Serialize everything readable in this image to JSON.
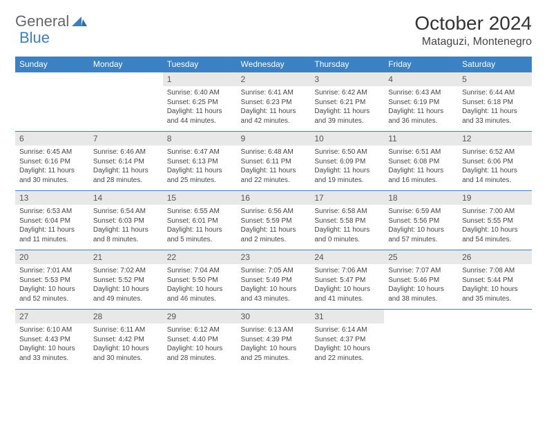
{
  "logo": {
    "text1": "General",
    "text2": "Blue"
  },
  "title": {
    "month": "October 2024",
    "location": "Mataguzi, Montenegro"
  },
  "colors": {
    "header_bg": "#3b82c4",
    "header_fg": "#ffffff",
    "daynum_bg": "#e8e8e8",
    "border": "#3b82c4",
    "text": "#444444"
  },
  "weekdays": [
    "Sunday",
    "Monday",
    "Tuesday",
    "Wednesday",
    "Thursday",
    "Friday",
    "Saturday"
  ],
  "weeks": [
    [
      null,
      null,
      {
        "n": "1",
        "sr": "6:40 AM",
        "ss": "6:25 PM",
        "dl": "11 hours and 44 minutes."
      },
      {
        "n": "2",
        "sr": "6:41 AM",
        "ss": "6:23 PM",
        "dl": "11 hours and 42 minutes."
      },
      {
        "n": "3",
        "sr": "6:42 AM",
        "ss": "6:21 PM",
        "dl": "11 hours and 39 minutes."
      },
      {
        "n": "4",
        "sr": "6:43 AM",
        "ss": "6:19 PM",
        "dl": "11 hours and 36 minutes."
      },
      {
        "n": "5",
        "sr": "6:44 AM",
        "ss": "6:18 PM",
        "dl": "11 hours and 33 minutes."
      }
    ],
    [
      {
        "n": "6",
        "sr": "6:45 AM",
        "ss": "6:16 PM",
        "dl": "11 hours and 30 minutes."
      },
      {
        "n": "7",
        "sr": "6:46 AM",
        "ss": "6:14 PM",
        "dl": "11 hours and 28 minutes."
      },
      {
        "n": "8",
        "sr": "6:47 AM",
        "ss": "6:13 PM",
        "dl": "11 hours and 25 minutes."
      },
      {
        "n": "9",
        "sr": "6:48 AM",
        "ss": "6:11 PM",
        "dl": "11 hours and 22 minutes."
      },
      {
        "n": "10",
        "sr": "6:50 AM",
        "ss": "6:09 PM",
        "dl": "11 hours and 19 minutes."
      },
      {
        "n": "11",
        "sr": "6:51 AM",
        "ss": "6:08 PM",
        "dl": "11 hours and 16 minutes."
      },
      {
        "n": "12",
        "sr": "6:52 AM",
        "ss": "6:06 PM",
        "dl": "11 hours and 14 minutes."
      }
    ],
    [
      {
        "n": "13",
        "sr": "6:53 AM",
        "ss": "6:04 PM",
        "dl": "11 hours and 11 minutes."
      },
      {
        "n": "14",
        "sr": "6:54 AM",
        "ss": "6:03 PM",
        "dl": "11 hours and 8 minutes."
      },
      {
        "n": "15",
        "sr": "6:55 AM",
        "ss": "6:01 PM",
        "dl": "11 hours and 5 minutes."
      },
      {
        "n": "16",
        "sr": "6:56 AM",
        "ss": "5:59 PM",
        "dl": "11 hours and 2 minutes."
      },
      {
        "n": "17",
        "sr": "6:58 AM",
        "ss": "5:58 PM",
        "dl": "11 hours and 0 minutes."
      },
      {
        "n": "18",
        "sr": "6:59 AM",
        "ss": "5:56 PM",
        "dl": "10 hours and 57 minutes."
      },
      {
        "n": "19",
        "sr": "7:00 AM",
        "ss": "5:55 PM",
        "dl": "10 hours and 54 minutes."
      }
    ],
    [
      {
        "n": "20",
        "sr": "7:01 AM",
        "ss": "5:53 PM",
        "dl": "10 hours and 52 minutes."
      },
      {
        "n": "21",
        "sr": "7:02 AM",
        "ss": "5:52 PM",
        "dl": "10 hours and 49 minutes."
      },
      {
        "n": "22",
        "sr": "7:04 AM",
        "ss": "5:50 PM",
        "dl": "10 hours and 46 minutes."
      },
      {
        "n": "23",
        "sr": "7:05 AM",
        "ss": "5:49 PM",
        "dl": "10 hours and 43 minutes."
      },
      {
        "n": "24",
        "sr": "7:06 AM",
        "ss": "5:47 PM",
        "dl": "10 hours and 41 minutes."
      },
      {
        "n": "25",
        "sr": "7:07 AM",
        "ss": "5:46 PM",
        "dl": "10 hours and 38 minutes."
      },
      {
        "n": "26",
        "sr": "7:08 AM",
        "ss": "5:44 PM",
        "dl": "10 hours and 35 minutes."
      }
    ],
    [
      {
        "n": "27",
        "sr": "6:10 AM",
        "ss": "4:43 PM",
        "dl": "10 hours and 33 minutes."
      },
      {
        "n": "28",
        "sr": "6:11 AM",
        "ss": "4:42 PM",
        "dl": "10 hours and 30 minutes."
      },
      {
        "n": "29",
        "sr": "6:12 AM",
        "ss": "4:40 PM",
        "dl": "10 hours and 28 minutes."
      },
      {
        "n": "30",
        "sr": "6:13 AM",
        "ss": "4:39 PM",
        "dl": "10 hours and 25 minutes."
      },
      {
        "n": "31",
        "sr": "6:14 AM",
        "ss": "4:37 PM",
        "dl": "10 hours and 22 minutes."
      },
      null,
      null
    ]
  ],
  "labels": {
    "sunrise": "Sunrise:",
    "sunset": "Sunset:",
    "daylight": "Daylight:"
  }
}
